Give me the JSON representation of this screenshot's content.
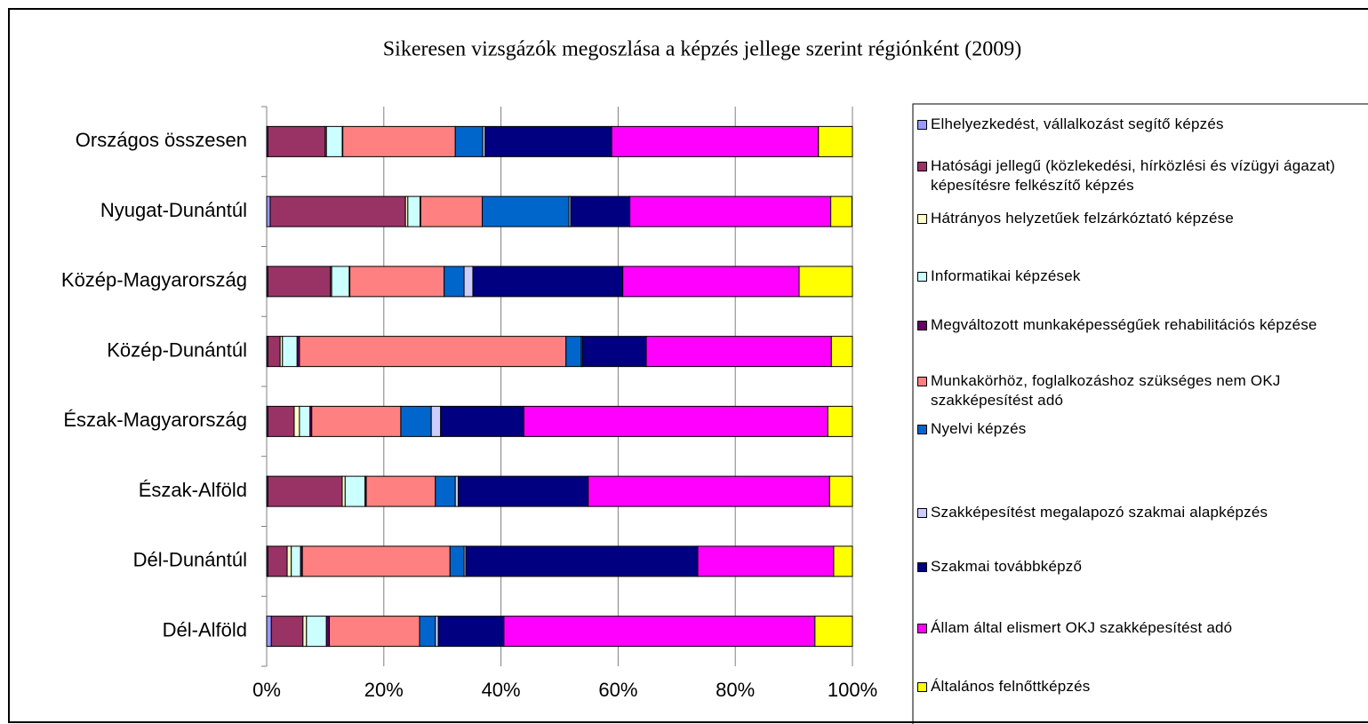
{
  "chart_data": {
    "type": "stacked_barh",
    "title": "Sikeresen vizsgázók megoszlása a képzés jellege szerint régiónként (2009)",
    "categories": [
      "Országos összesen",
      "Nyugat-Dunántúl",
      "Közép-Magyarország",
      "Közép-Dunántúl",
      "Észak-Magyarország",
      "Észak-Alföld",
      "Dél-Dunántúl",
      "Dél-Alföld"
    ],
    "series": [
      {
        "name": "Elhelyezkedést, vállalkozást segítő képzés",
        "color": "#9999ff",
        "values": [
          0.2,
          0.6,
          0.2,
          0.2,
          0.2,
          0.2,
          0.2,
          0.8
        ]
      },
      {
        "name": "Hatósági jellegű (közlekedési, hírközlési és vízügyi ágazat) képesítésre felkészítő képzés",
        "color": "#993366",
        "values": [
          9.8,
          23.1,
          10.7,
          2.1,
          4.5,
          12.7,
          3.3,
          5.4
        ]
      },
      {
        "name": "Hátrányos helyzetűek felzárkóztató képzése",
        "color": "#ffffcc",
        "values": [
          0.2,
          0.4,
          0.2,
          0.4,
          0.9,
          0.5,
          0.7,
          0.6
        ]
      },
      {
        "name": "Informatikai képzések",
        "color": "#ccffff",
        "values": [
          2.7,
          2.1,
          3.0,
          2.5,
          1.8,
          3.4,
          1.6,
          3.4
        ]
      },
      {
        "name": "Megváltozott munkaképességűek rehabilitációs képzése",
        "color": "#660066",
        "values": [
          0.1,
          0.1,
          0.1,
          0.4,
          0.3,
          0.2,
          0.3,
          0.5
        ]
      },
      {
        "name": "Munkakörhöz, foglalkozáshoz szükséges nem OKJ szakképesítést adó",
        "color": "#ff8080",
        "values": [
          19.2,
          10.5,
          16.1,
          45.5,
          15.2,
          11.8,
          25.2,
          15.4
        ]
      },
      {
        "name": "Nyelvi képzés",
        "color": "#0066cc",
        "values": [
          4.7,
          14.8,
          3.4,
          2.6,
          5.2,
          3.4,
          2.4,
          2.7
        ]
      },
      {
        "name": "Szakképesítést megalapozó szakmai alapképzés",
        "color": "#ccccff",
        "values": [
          0.4,
          0.3,
          1.5,
          0.2,
          1.6,
          0.5,
          0.3,
          0.5
        ]
      },
      {
        "name": "Szakmai továbbképző",
        "color": "#000080",
        "values": [
          21.6,
          10.1,
          25.6,
          10.9,
          14.2,
          22.2,
          39.6,
          11.2
        ]
      },
      {
        "name": "Állam által elismert OKJ szakképesítést adó",
        "color": "#ff00ff",
        "values": [
          35.3,
          34.3,
          30.1,
          31.6,
          51.9,
          41.2,
          23.2,
          53.1
        ]
      },
      {
        "name": "Általános felnőttképzés",
        "color": "#ffff00",
        "values": [
          5.8,
          3.6,
          9.1,
          3.6,
          4.2,
          3.9,
          3.2,
          6.4
        ]
      }
    ],
    "xlim": [
      0,
      100
    ],
    "xticks": [
      {
        "value": 0,
        "label": "0%"
      },
      {
        "value": 20,
        "label": "20%"
      },
      {
        "value": 40,
        "label": "40%"
      },
      {
        "value": 60,
        "label": "60%"
      },
      {
        "value": 80,
        "label": "80%"
      },
      {
        "value": 100,
        "label": "100%"
      }
    ],
    "grid": true,
    "legend": "right"
  }
}
